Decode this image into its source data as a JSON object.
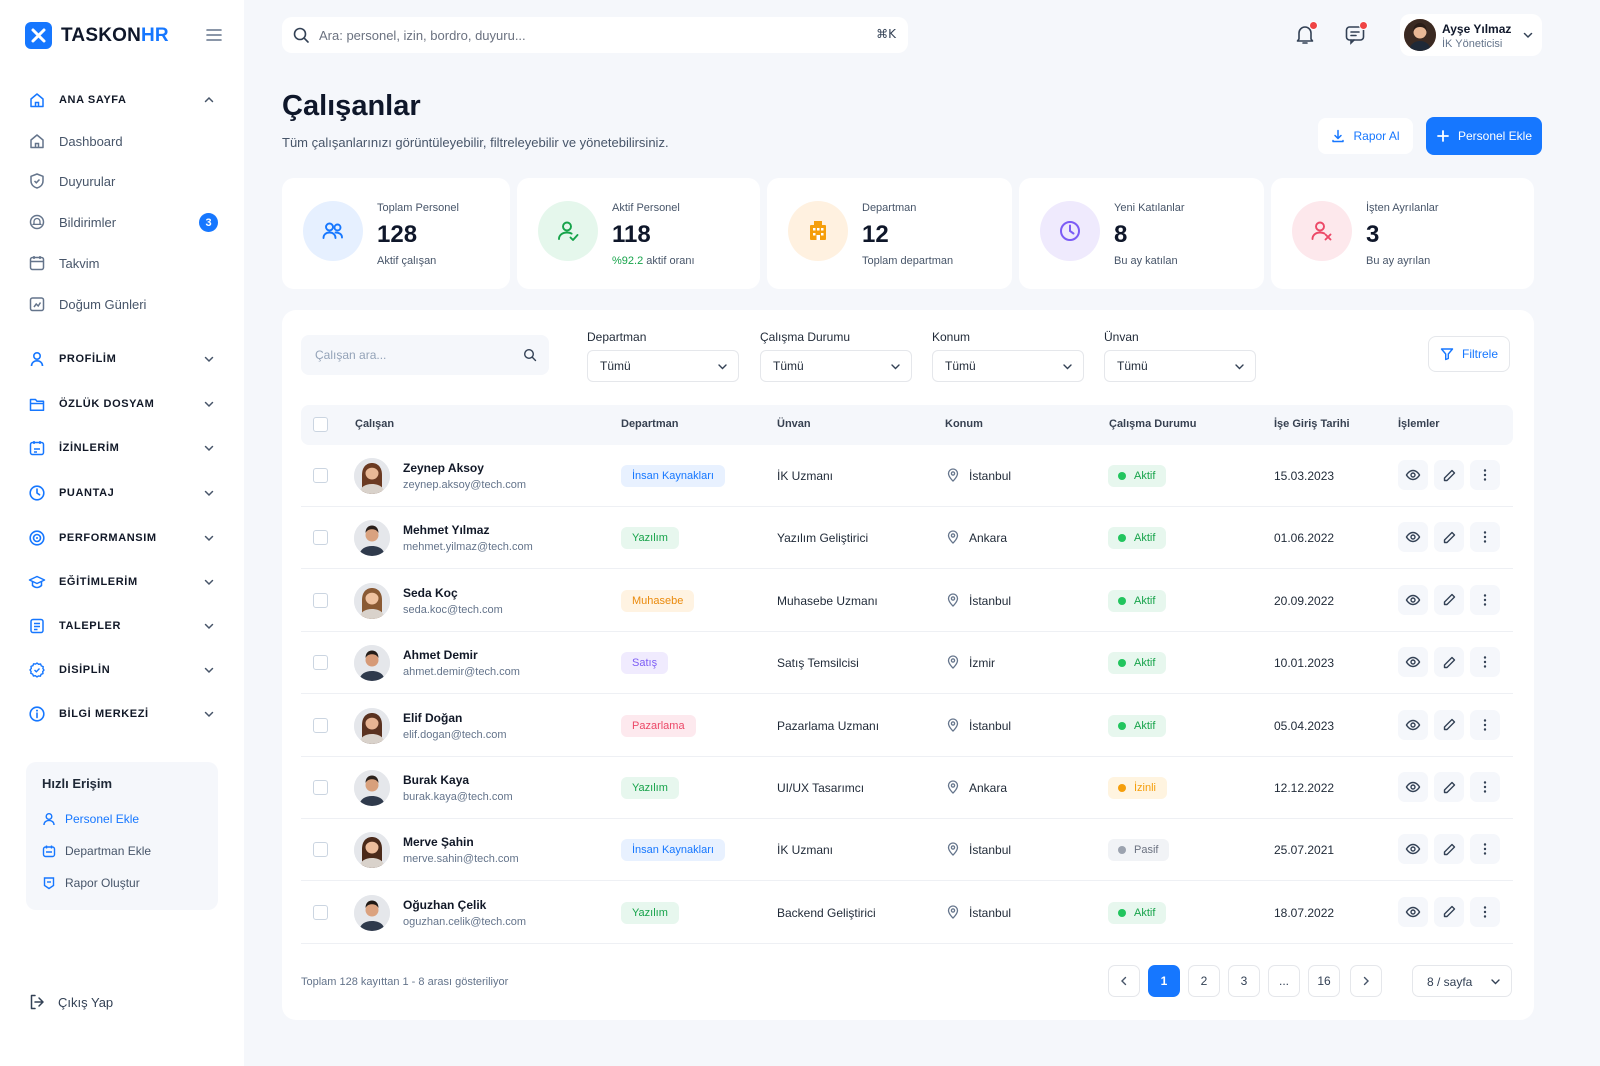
{
  "brand": {
    "name_main": "TASKON",
    "name_accent": "HR"
  },
  "sidebar": {
    "section_home": "ANA SAYFA",
    "home_items": [
      "Dashboard",
      "Duyurular",
      "Bildirimler",
      "Takvim",
      "Doğum Günleri"
    ],
    "notification_badge": "3",
    "sections": [
      "PROFİLİM",
      "ÖZLÜK DOSYAM",
      "İZİNLERİM",
      "PUANTAJ",
      "PERFORMANSIM",
      "EĞİTİMLERİM",
      "TALEPLER",
      "DİSİPLİN",
      "BİLGİ MERKEZİ"
    ],
    "quick_access": {
      "title": "Hızlı Erişim",
      "links": [
        "Personel Ekle",
        "Departman Ekle",
        "Rapor Oluştur"
      ]
    },
    "logout": "Çıkış Yap"
  },
  "topbar": {
    "search_placeholder": "Ara: personel, izin, bordro, duyuru...",
    "shortcut": "⌘K",
    "user_name": "Ayşe Yılmaz",
    "user_role": "İK Yöneticisi"
  },
  "page": {
    "title": "Çalışanlar",
    "subtitle": "Tüm çalışanlarınızı görüntüleyebilir, filtreleyebilir ve yönetebilirsiniz.",
    "report_button": "Rapor Al",
    "add_button": "Personel Ekle"
  },
  "stats": [
    {
      "label": "Toplam Personel",
      "value": "128",
      "note": "Aktif çalışan"
    },
    {
      "label": "Aktif Personel",
      "value": "118",
      "note_highlight": "%92.2",
      "note": " aktif oranı"
    },
    {
      "label": "Departman",
      "value": "12",
      "note": "Toplam departman"
    },
    {
      "label": "Yeni Katılanlar",
      "value": "8",
      "note": "Bu ay katılan"
    },
    {
      "label": "İşten Ayrılanlar",
      "value": "3",
      "note": "Bu ay ayrılan"
    }
  ],
  "filters": {
    "search_placeholder": "Çalışan ara...",
    "items": [
      {
        "label": "Departman",
        "value": "Tümü"
      },
      {
        "label": "Çalışma Durumu",
        "value": "Tümü"
      },
      {
        "label": "Konum",
        "value": "Tümü"
      },
      {
        "label": "Ünvan",
        "value": "Tümü"
      }
    ],
    "filter_button": "Filtrele"
  },
  "table": {
    "headers": [
      "Çalışan",
      "Departman",
      "Ünvan",
      "Konum",
      "Çalışma Durumu",
      "İşe Giriş Tarihi",
      "İşlemler"
    ],
    "rows": [
      {
        "name": "Zeynep Aksoy",
        "email": "zeynep.aksoy@tech.com",
        "dept": "İnsan Kaynakları",
        "title": "İK Uzmanı",
        "loc": "İstanbul",
        "status": "Aktif",
        "date": "15.03.2023"
      },
      {
        "name": "Mehmet Yılmaz",
        "email": "mehmet.yilmaz@tech.com",
        "dept": "Yazılım",
        "title": "Yazılım Geliştirici",
        "loc": "Ankara",
        "status": "Aktif",
        "date": "01.06.2022"
      },
      {
        "name": "Seda Koç",
        "email": "seda.koc@tech.com",
        "dept": "Muhasebe",
        "title": "Muhasebe Uzmanı",
        "loc": "İstanbul",
        "status": "Aktif",
        "date": "20.09.2022"
      },
      {
        "name": "Ahmet Demir",
        "email": "ahmet.demir@tech.com",
        "dept": "Satış",
        "title": "Satış Temsilcisi",
        "loc": "İzmir",
        "status": "Aktif",
        "date": "10.01.2023"
      },
      {
        "name": "Elif Doğan",
        "email": "elif.dogan@tech.com",
        "dept": "Pazarlama",
        "title": "Pazarlama Uzmanı",
        "loc": "İstanbul",
        "status": "Aktif",
        "date": "05.04.2023"
      },
      {
        "name": "Burak Kaya",
        "email": "burak.kaya@tech.com",
        "dept": "Yazılım",
        "title": "UI/UX Tasarımcı",
        "loc": "Ankara",
        "status": "İzinli",
        "date": "12.12.2022"
      },
      {
        "name": "Merve Şahin",
        "email": "merve.sahin@tech.com",
        "dept": "İnsan Kaynakları",
        "title": "İK Uzmanı",
        "loc": "İstanbul",
        "status": "Pasif",
        "date": "25.07.2021"
      },
      {
        "name": "Oğuzhan Çelik",
        "email": "oguzhan.celik@tech.com",
        "dept": "Yazılım",
        "title": "Backend Geliştirici",
        "loc": "İstanbul",
        "status": "Aktif",
        "date": "18.07.2022"
      }
    ]
  },
  "pagination": {
    "summary": "Toplam 128 kayıttan 1 - 8 arası gösteriliyor",
    "pages": [
      "1",
      "2",
      "3",
      "...",
      "16"
    ],
    "current": "1",
    "per_page": "8 / sayfa"
  },
  "colors": {
    "accent": "#1677ff",
    "status_active": "#22c55e",
    "status_leave": "#f59e0b",
    "status_passive": "#9ca3af",
    "dept_hr": "#1677ff",
    "dept_software": "#16a34a",
    "dept_accounting": "#ea8a0c",
    "dept_sales": "#7c5cf5",
    "dept_marketing": "#ec4867"
  }
}
